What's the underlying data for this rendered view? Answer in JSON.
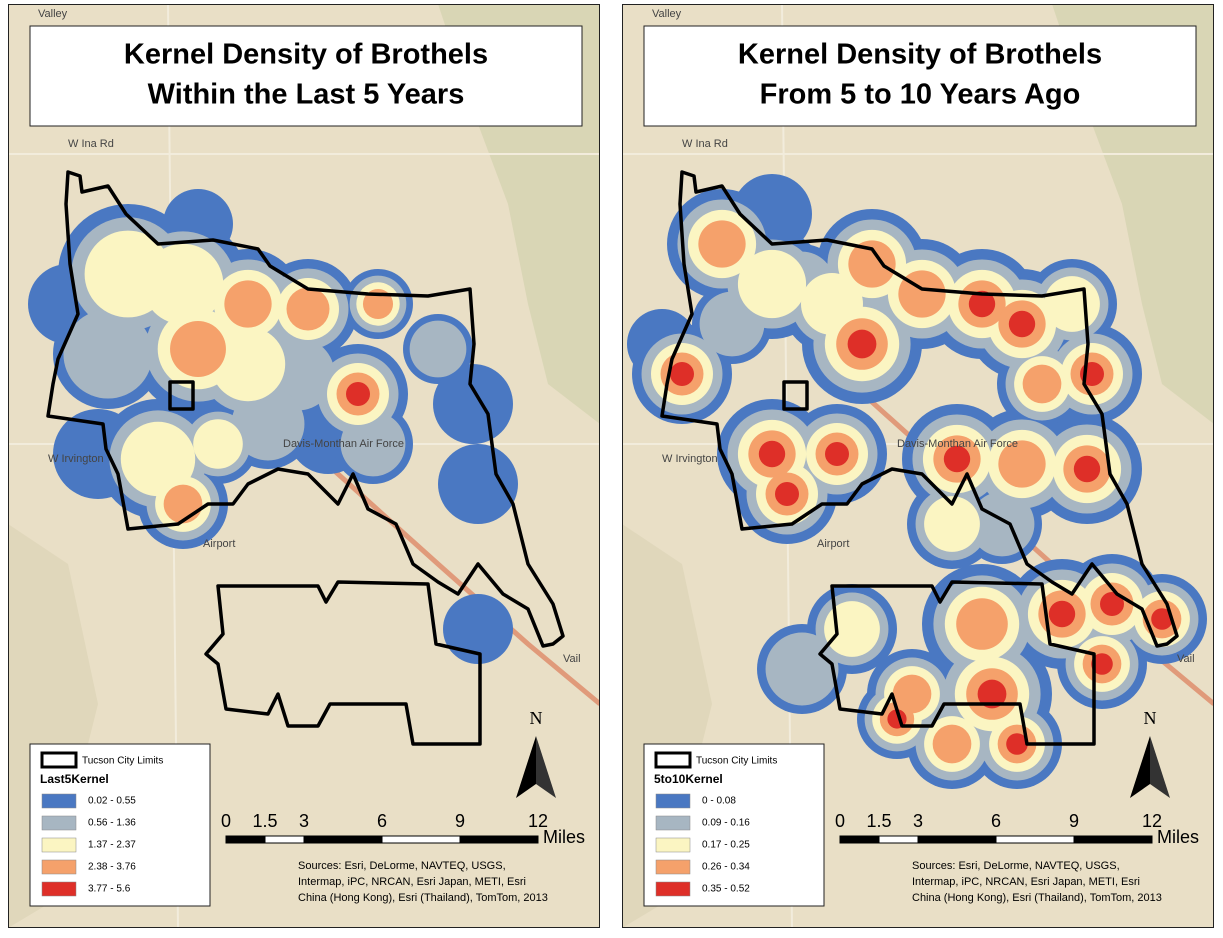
{
  "panels": [
    {
      "title": [
        "Kernel Density of Brothels",
        "Within the Last 5 Years"
      ],
      "legend": {
        "boundary": "Tucson City Limits",
        "field": "Last5Kernel",
        "classes": [
          {
            "label": "0.02 - 0.55",
            "color": "#4a78c2"
          },
          {
            "label": "0.56 - 1.36",
            "color": "#a7b6c2"
          },
          {
            "label": "1.37 - 2.37",
            "color": "#fbf5c2"
          },
          {
            "label": "2.38 - 3.76",
            "color": "#f5a16b"
          },
          {
            "label": "3.77 - 5.6",
            "color": "#de2f28"
          }
        ]
      },
      "scale": {
        "ticks": [
          0,
          1.5,
          3,
          6,
          9,
          12
        ],
        "unit": "Miles"
      },
      "north": "N",
      "sources": [
        "Sources: Esri, DeLorme, NAVTEQ, USGS,",
        "Intermap, iPC, NRCAN, Esri Japan, METI, Esri",
        "China (Hong Kong), Esri (Thailand), TomTom, 2013"
      ],
      "places": [
        "Valley",
        "W Ina Rd",
        "W Irvington",
        "Vail",
        "Davis-Monthan Air Force",
        "Airport"
      ]
    },
    {
      "title": [
        "Kernel Density of Brothels",
        "From 5 to 10 Years Ago"
      ],
      "legend": {
        "boundary": "Tucson City Limits",
        "field": "5to10Kernel",
        "classes": [
          {
            "label": "0 - 0.08",
            "color": "#4a78c2"
          },
          {
            "label": "0.09 - 0.16",
            "color": "#a7b6c2"
          },
          {
            "label": "0.17 - 0.25",
            "color": "#fbf5c2"
          },
          {
            "label": "0.26 - 0.34",
            "color": "#f5a16b"
          },
          {
            "label": "0.35 - 0.52",
            "color": "#de2f28"
          }
        ]
      },
      "scale": {
        "ticks": [
          0,
          1.5,
          3,
          6,
          9,
          12
        ],
        "unit": "Miles"
      },
      "north": "N",
      "sources": [
        "Sources: Esri, DeLorme, NAVTEQ, USGS,",
        "Intermap, iPC, NRCAN, Esri Japan, METI, Esri",
        "China (Hong Kong), Esri (Thailand), TomTom, 2013"
      ],
      "places": [
        "Valley",
        "W Ina Rd",
        "W Irvington",
        "Vail",
        "Davis-Monthan Air Force",
        "Airport"
      ]
    }
  ]
}
